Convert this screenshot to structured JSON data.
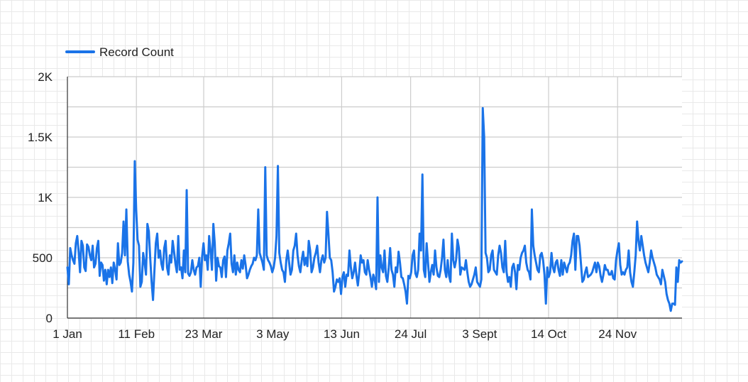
{
  "chart_data": {
    "type": "line",
    "series": [
      {
        "name": "Record Count",
        "color": "#1a73e8",
        "x_start": "1 Jan",
        "step_days": 1,
        "values": [
          420,
          280,
          580,
          520,
          480,
          450,
          620,
          680,
          550,
          380,
          640,
          600,
          420,
          390,
          610,
          590,
          520,
          480,
          600,
          420,
          450,
          580,
          640,
          350,
          460,
          440,
          310,
          400,
          280,
          400,
          340,
          420,
          290,
          460,
          400,
          320,
          620,
          440,
          460,
          540,
          800,
          520,
          900,
          470,
          360,
          300,
          220,
          460,
          1300,
          900,
          650,
          600,
          260,
          300,
          540,
          460,
          360,
          780,
          720,
          500,
          300,
          150,
          390,
          620,
          700,
          500,
          560,
          450,
          400,
          580,
          640,
          420,
          360,
          520,
          460,
          640,
          550,
          450,
          380,
          680,
          400,
          420,
          330,
          560,
          380,
          1060,
          370,
          350,
          380,
          480,
          400,
          360,
          420,
          430,
          500,
          260,
          510,
          620,
          480,
          520,
          400,
          680,
          560,
          400,
          780,
          620,
          310,
          500,
          430,
          420,
          340,
          480,
          510,
          340,
          560,
          620,
          700,
          450,
          380,
          520,
          360,
          460,
          400,
          380,
          480,
          410,
          520,
          440,
          330,
          360,
          400,
          430,
          450,
          500,
          480,
          520,
          900,
          540,
          500,
          460,
          400,
          1250,
          520,
          480,
          460,
          430,
          380,
          420,
          500,
          680,
          1260,
          540,
          460,
          400,
          380,
          300,
          480,
          560,
          460,
          360,
          400,
          560,
          600,
          700,
          520,
          430,
          380,
          480,
          550,
          440,
          500,
          430,
          640,
          560,
          380,
          420,
          500,
          540,
          600,
          460,
          380,
          480,
          520,
          460,
          500,
          880,
          700,
          500,
          480,
          380,
          220,
          260,
          320,
          300,
          330,
          200,
          340,
          380,
          260,
          360,
          350,
          560,
          420,
          330,
          380,
          460,
          350,
          270,
          380,
          520,
          460,
          480,
          380,
          360,
          480,
          400,
          340,
          260,
          360,
          320,
          240,
          1000,
          300,
          520,
          420,
          380,
          560,
          350,
          300,
          420,
          580,
          400,
          360,
          260,
          420,
          380,
          550,
          460,
          340,
          330,
          280,
          220,
          120,
          350,
          330,
          380,
          520,
          560,
          370,
          340,
          400,
          700,
          560,
          1190,
          400,
          340,
          620,
          460,
          300,
          380,
          440,
          360,
          560,
          420,
          350,
          340,
          400,
          500,
          650,
          400,
          340,
          480,
          350,
          300,
          700,
          480,
          420,
          480,
          650,
          580,
          360,
          420,
          410,
          400,
          480,
          380,
          300,
          260,
          280,
          320,
          360,
          420,
          300,
          280,
          260,
          320,
          1740,
          1500,
          540,
          500,
          380,
          400,
          520,
          560,
          400,
          380,
          360,
          520,
          600,
          540,
          420,
          380,
          640,
          380,
          300,
          340,
          260,
          420,
          450,
          380,
          240,
          440,
          400,
          500,
          540,
          560,
          600,
          460,
          400,
          380,
          320,
          900,
          600,
          520,
          460,
          400,
          380,
          520,
          540,
          480,
          360,
          120,
          420,
          340,
          380,
          540,
          420,
          380,
          460,
          480,
          400,
          350,
          480,
          360,
          460,
          420,
          380,
          440,
          460,
          520,
          640,
          700,
          400,
          680,
          680,
          600,
          450,
          300,
          320,
          380,
          420,
          340,
          350,
          360,
          380,
          420,
          460,
          380,
          460,
          430,
          350,
          300,
          360,
          440,
          400,
          400,
          360,
          360,
          390,
          330,
          320,
          480,
          560,
          620,
          440,
          360,
          380,
          360,
          400,
          420,
          560,
          380,
          300,
          260,
          380,
          520,
          800,
          640,
          560,
          680,
          600,
          520,
          460,
          420,
          380,
          460,
          560,
          500,
          460,
          420,
          360,
          340,
          320,
          280,
          400,
          350,
          300,
          200,
          150,
          120,
          60,
          120,
          120,
          110,
          420,
          300,
          480,
          460,
          470
        ]
      }
    ],
    "x_ticks": [
      "1 Jan",
      "11 Feb",
      "23 Mar",
      "3 May",
      "13 Jun",
      "24 Jul",
      "3 Sept",
      "14 Oct",
      "24 Nov"
    ],
    "y_ticks": [
      "0",
      "500",
      "1K",
      "1.5K",
      "2K"
    ],
    "ylim": [
      0,
      2000
    ],
    "grid": true,
    "legend_position": "top-left"
  }
}
